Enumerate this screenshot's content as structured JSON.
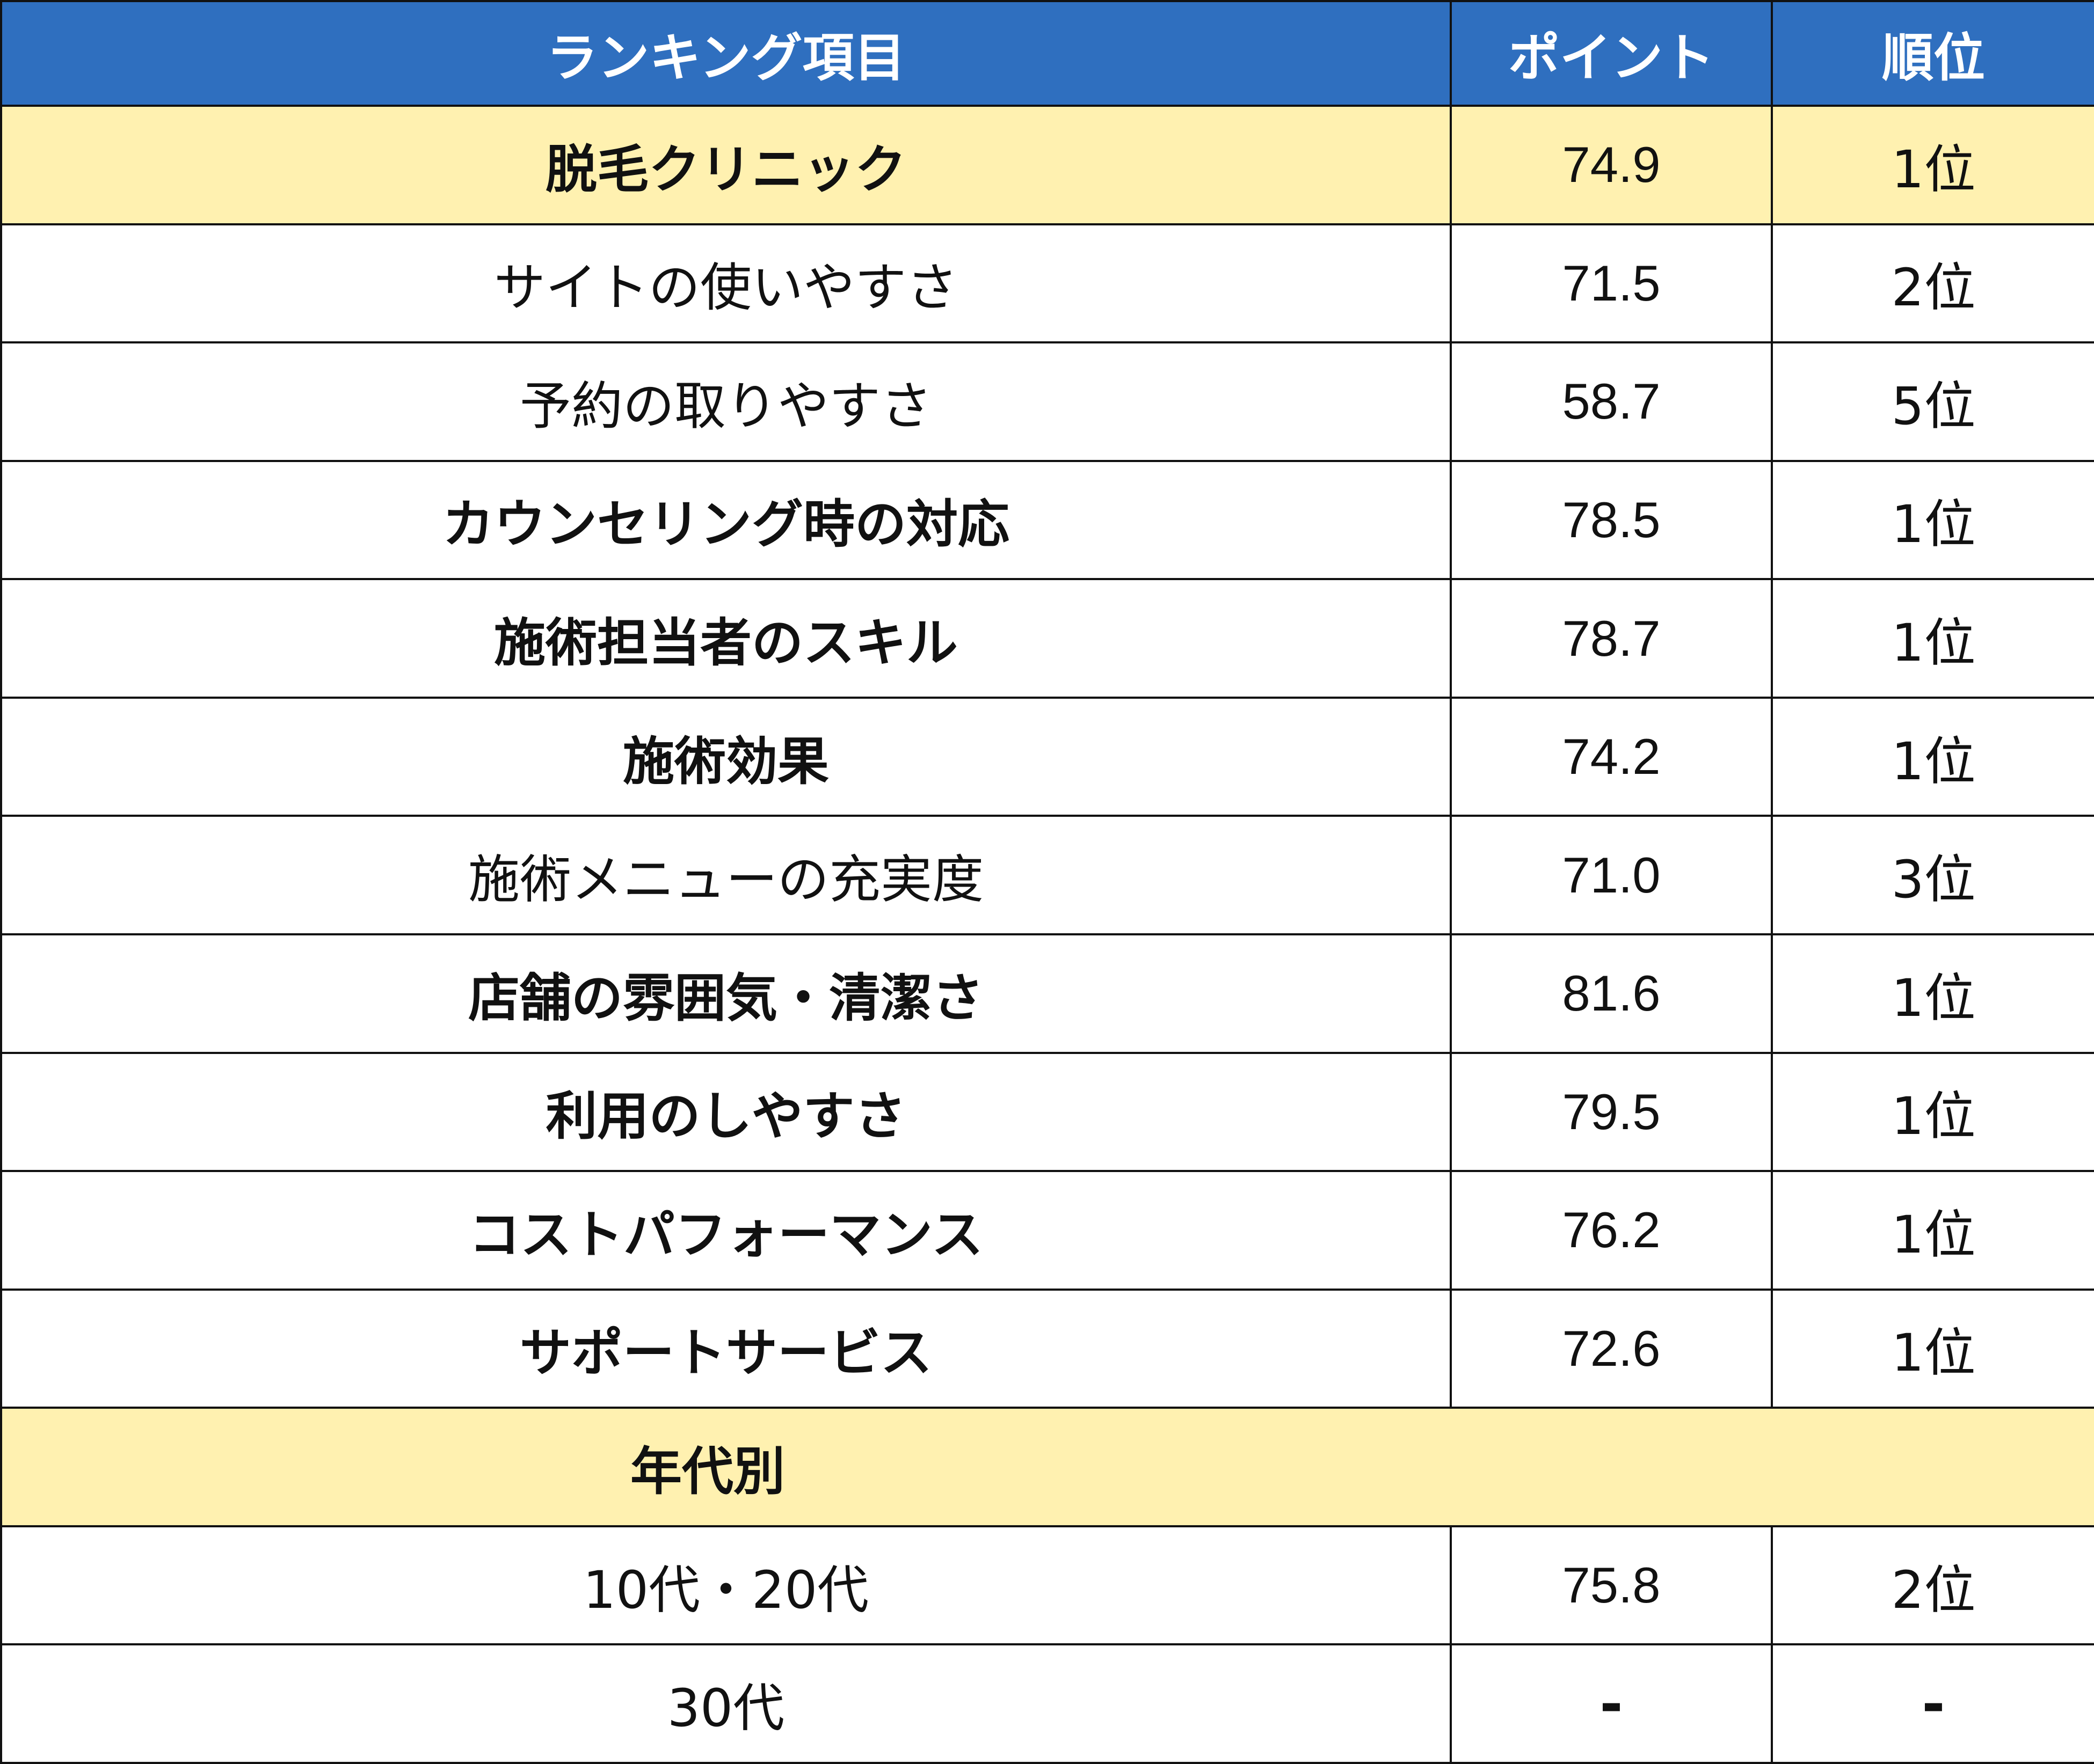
{
  "colors": {
    "header_bg": "#2f6fbf",
    "highlight_bg": "#fff1b0",
    "border": "#111111"
  },
  "header": {
    "item": "ランキング項目",
    "point": "ポイント",
    "rank": "順位"
  },
  "rows": [
    {
      "item": "脱毛クリニック",
      "point": "74.9",
      "rank": "1位",
      "bold": true,
      "highlight": true
    },
    {
      "item": "サイトの使いやすさ",
      "point": "71.5",
      "rank": "2位",
      "bold": false
    },
    {
      "item": "予約の取りやすさ",
      "point": "58.7",
      "rank": "5位",
      "bold": false
    },
    {
      "item": "カウンセリング時の対応",
      "point": "78.5",
      "rank": "1位",
      "bold": true
    },
    {
      "item": "施術担当者のスキル",
      "point": "78.7",
      "rank": "1位",
      "bold": true
    },
    {
      "item": "施術効果",
      "point": "74.2",
      "rank": "1位",
      "bold": true
    },
    {
      "item": "施術メニューの充実度",
      "point": "71.0",
      "rank": "3位",
      "bold": false
    },
    {
      "item": "店舗の雰囲気・清潔さ",
      "point": "81.6",
      "rank": "1位",
      "bold": true
    },
    {
      "item": "利用のしやすさ",
      "point": "79.5",
      "rank": "1位",
      "bold": true
    },
    {
      "item": "コストパフォーマンス",
      "point": "76.2",
      "rank": "1位",
      "bold": true
    },
    {
      "item": "サポートサービス",
      "point": "72.6",
      "rank": "1位",
      "bold": true
    }
  ],
  "section": {
    "label": "年代別"
  },
  "age_rows": [
    {
      "item": "10代・20代",
      "point": "75.8",
      "rank": "2位"
    },
    {
      "item": "30代",
      "point": "-",
      "rank": "-"
    }
  ]
}
